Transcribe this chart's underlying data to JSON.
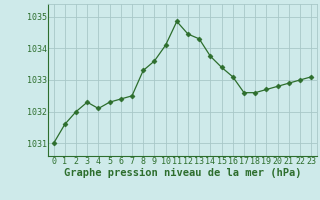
{
  "x": [
    0,
    1,
    2,
    3,
    4,
    5,
    6,
    7,
    8,
    9,
    10,
    11,
    12,
    13,
    14,
    15,
    16,
    17,
    18,
    19,
    20,
    21,
    22,
    23
  ],
  "y": [
    1031.0,
    1031.6,
    1032.0,
    1032.3,
    1032.1,
    1032.3,
    1032.4,
    1032.5,
    1033.3,
    1033.6,
    1034.1,
    1034.85,
    1034.45,
    1034.3,
    1033.75,
    1033.4,
    1033.1,
    1032.6,
    1032.6,
    1032.7,
    1032.8,
    1032.9,
    1033.0,
    1033.1
  ],
  "line_color": "#2d6e2d",
  "marker": "D",
  "marker_size": 2.5,
  "bg_color": "#ceeaea",
  "grid_color": "#a8c8c8",
  "xlabel": "Graphe pression niveau de la mer (hPa)",
  "xlabel_color": "#2d6e2d",
  "xlabel_fontsize": 7.5,
  "yticks": [
    1031,
    1032,
    1033,
    1034,
    1035
  ],
  "xticks": [
    0,
    1,
    2,
    3,
    4,
    5,
    6,
    7,
    8,
    9,
    10,
    11,
    12,
    13,
    14,
    15,
    16,
    17,
    18,
    19,
    20,
    21,
    22,
    23
  ],
  "ylim": [
    1030.6,
    1035.4
  ],
  "xlim": [
    -0.5,
    23.5
  ],
  "tick_color": "#2d6e2d",
  "tick_fontsize": 6.0,
  "spine_color": "#888888"
}
